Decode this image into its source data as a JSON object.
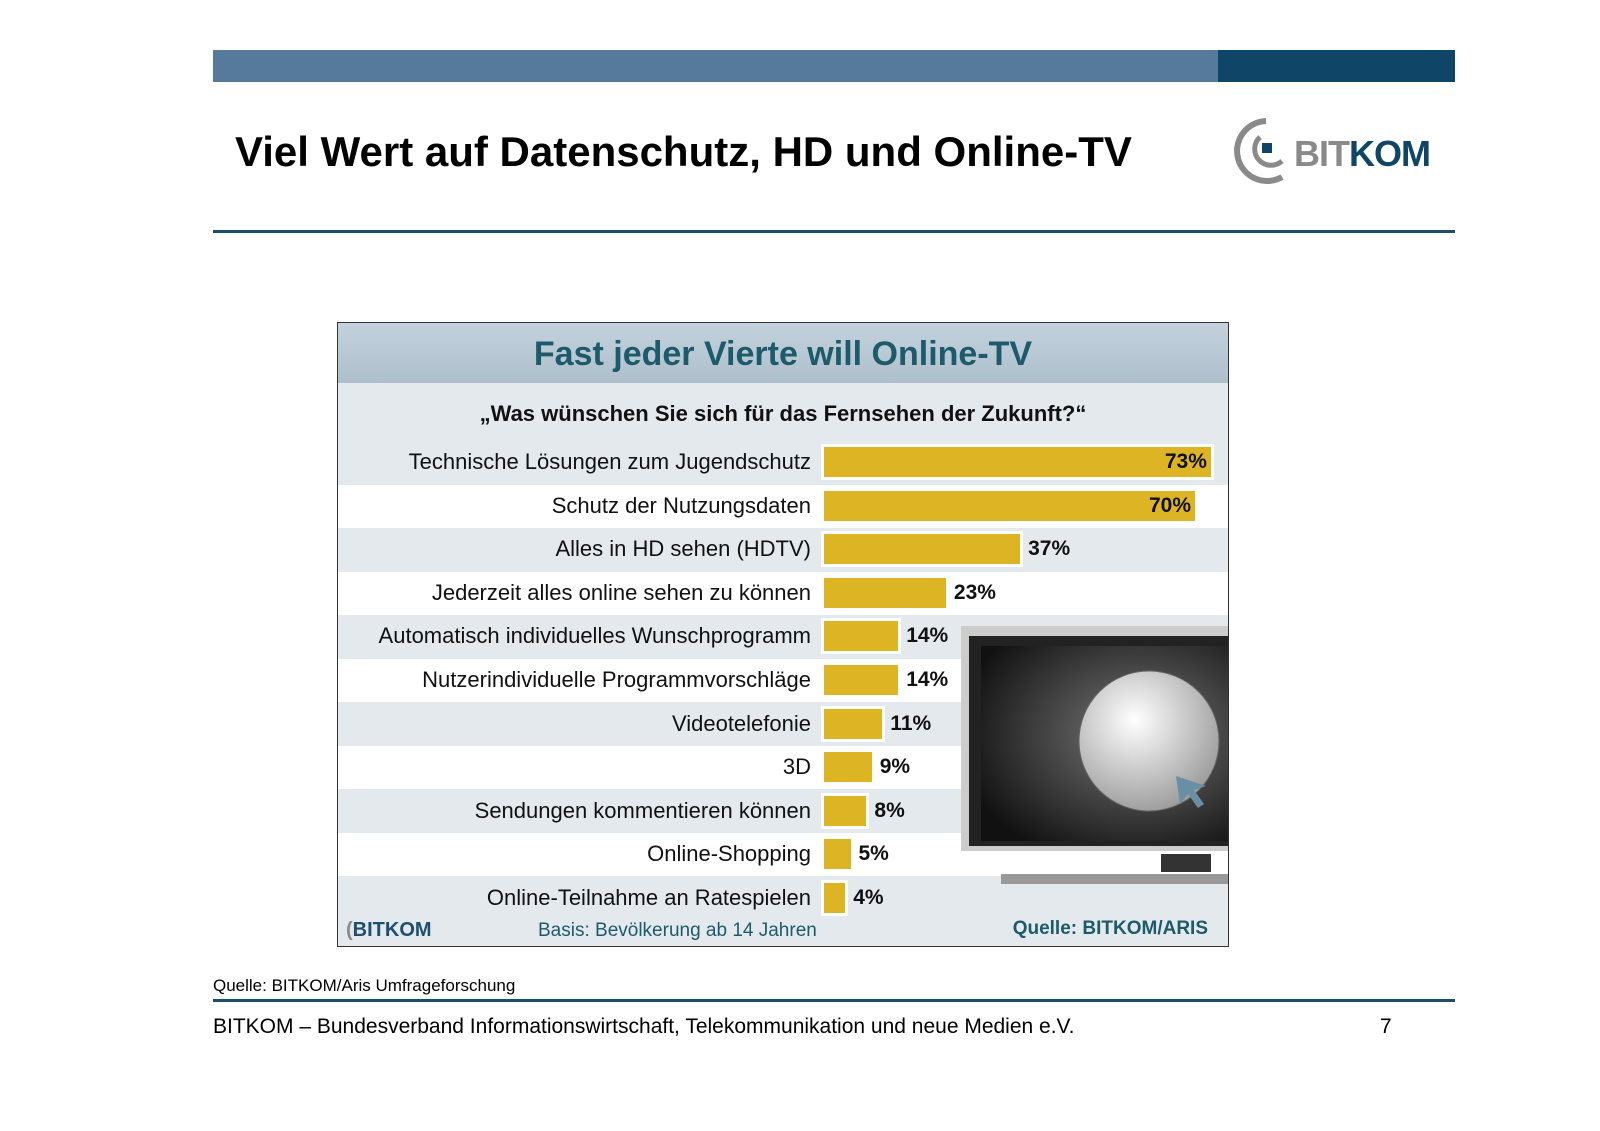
{
  "slide": {
    "title": "Viel Wert auf Datenschutz, HD und Online-TV",
    "logo": "BITKOM",
    "source_note": "Quelle: BITKOM/Aris Umfrageforschung",
    "footer": "BITKOM – Bundesverband Informationswirtschaft, Telekommunikation und neue Medien e.V.",
    "page_number": "7"
  },
  "colors": {
    "bar": "#ddb524",
    "title": "#1d5a6a",
    "band_light": "#557a9b",
    "band_dark": "#0f4566"
  },
  "chart_data": {
    "type": "bar",
    "orientation": "horizontal",
    "title": "Fast jeder Vierte will Online-TV",
    "subtitle": "„Was wünschen Sie sich für das Fernsehen der Zukunft?“",
    "categories": [
      "Technische Lösungen zum Jugendschutz",
      "Schutz der Nutzungsdaten",
      "Alles in HD sehen (HDTV)",
      "Jederzeit alles online sehen zu können",
      "Automatisch individuelles Wunschprogramm",
      "Nutzerindividuelle Programmvorschläge",
      "Videotelefonie",
      "3D",
      "Sendungen kommentieren können",
      "Online-Shopping",
      "Online-Teilnahme an Ratespielen"
    ],
    "values": [
      73,
      70,
      37,
      23,
      14,
      14,
      11,
      9,
      8,
      5,
      4
    ],
    "value_labels": [
      "73%",
      "70%",
      "37%",
      "23%",
      "14%",
      "14%",
      "11%",
      "9%",
      "8%",
      "5%",
      "4%"
    ],
    "unit": "%",
    "xlim": [
      0,
      100
    ],
    "basis": "Basis: Bevölkerung ab 14 Jahren",
    "source": "Quelle: BITKOM/ARIS",
    "logo": "BITKOM"
  }
}
